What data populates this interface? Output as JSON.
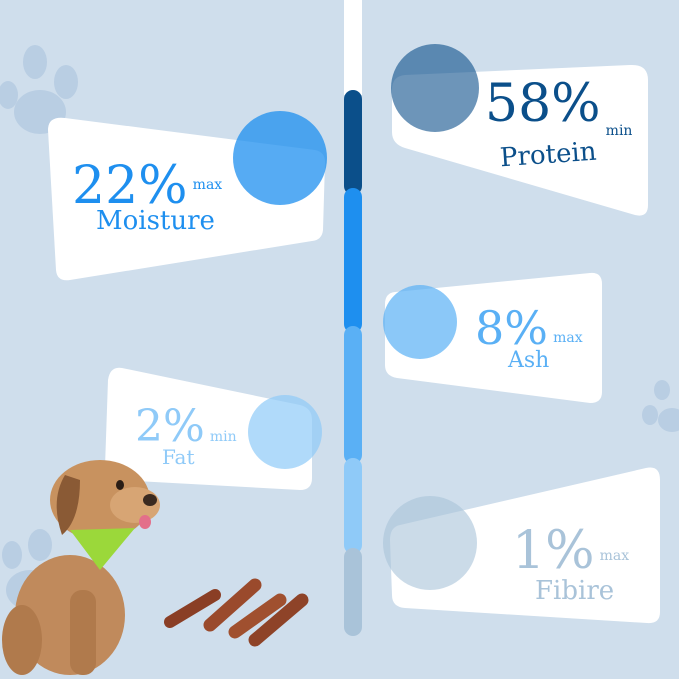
{
  "colors": {
    "background": "#cfdeec",
    "navy": "#0b4f8a",
    "blue": "#1e8fef",
    "mid_blue": "#5ab0f5",
    "light_blue": "#8fcaf8",
    "grey_blue": "#a9c3d9"
  },
  "stats": [
    {
      "value": "22%",
      "qualifier": "max",
      "label": "Moisture",
      "color": "#1e8fef"
    },
    {
      "value": "58%",
      "qualifier": "min",
      "label": "Protein",
      "color": "#0b4f8a"
    },
    {
      "value": "8%",
      "qualifier": "max",
      "label": "Ash",
      "color": "#5ab0f5"
    },
    {
      "value": "2%",
      "qualifier": "min",
      "label": "Fat",
      "color": "#8fcaf8"
    },
    {
      "value": "1%",
      "qualifier": "max",
      "label": "Fibire",
      "color": "#a9c3d9"
    }
  ]
}
